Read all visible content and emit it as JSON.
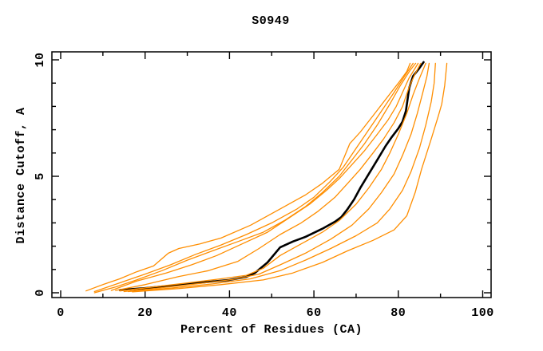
{
  "title": "S0949",
  "colors": {
    "background": "#ffffff",
    "frame": "#000000",
    "orange_series": "#ff8e00",
    "black_series": "#000000"
  },
  "chart_data": {
    "type": "line",
    "title": "S0949",
    "xlabel": "Percent of Residues (CA)",
    "ylabel": "Distance Cutoff, A",
    "xlim": [
      0,
      100
    ],
    "ylim": [
      0,
      10
    ],
    "grid": false,
    "legend": "none",
    "x_major_ticks": {
      "values": [
        0,
        20,
        40,
        60,
        80,
        100
      ],
      "labels": [
        "0",
        "20",
        "40",
        "60",
        "80",
        "100"
      ]
    },
    "x_minor_ticks": [
      10,
      30,
      50,
      70,
      90
    ],
    "y_major_ticks": {
      "values": [
        0,
        5,
        10
      ],
      "labels": [
        "0",
        "5",
        "10"
      ]
    },
    "y_minor_ticks": [
      1,
      2,
      3,
      4,
      6,
      7,
      8,
      9
    ],
    "series": [
      {
        "name": "black-main-curve",
        "color": "#000000",
        "width": 2.6,
        "points": [
          [
            14,
            0.12
          ],
          [
            20,
            0.2
          ],
          [
            27,
            0.32
          ],
          [
            34,
            0.45
          ],
          [
            40,
            0.55
          ],
          [
            44,
            0.68
          ],
          [
            46,
            0.85
          ],
          [
            49,
            1.3
          ],
          [
            52,
            1.95
          ],
          [
            55,
            2.2
          ],
          [
            58,
            2.4
          ],
          [
            62,
            2.75
          ],
          [
            65,
            3.05
          ],
          [
            66.5,
            3.25
          ],
          [
            68,
            3.6
          ],
          [
            69.5,
            4.0
          ],
          [
            71,
            4.5
          ],
          [
            73,
            5.1
          ],
          [
            75,
            5.7
          ],
          [
            77,
            6.3
          ],
          [
            78.5,
            6.7
          ],
          [
            80,
            7.05
          ],
          [
            81,
            7.35
          ],
          [
            81.8,
            7.8
          ],
          [
            82.2,
            8.3
          ],
          [
            82.6,
            8.8
          ],
          [
            83.5,
            9.3
          ],
          [
            84.8,
            9.6
          ],
          [
            86,
            9.9
          ]
        ]
      },
      {
        "name": "orange-curve-1",
        "color": "#ff8e00",
        "width": 1.3,
        "points": [
          [
            6,
            0.08
          ],
          [
            10,
            0.35
          ],
          [
            14,
            0.6
          ],
          [
            18,
            0.9
          ],
          [
            22,
            1.15
          ],
          [
            25.5,
            1.7
          ],
          [
            28,
            1.9
          ],
          [
            33,
            2.1
          ],
          [
            38,
            2.35
          ],
          [
            45,
            2.9
          ],
          [
            52,
            3.6
          ],
          [
            58,
            4.2
          ],
          [
            62,
            4.7
          ],
          [
            66,
            5.3
          ],
          [
            68.5,
            6.4
          ],
          [
            71,
            6.9
          ],
          [
            74,
            7.6
          ],
          [
            77,
            8.3
          ],
          [
            80,
            9.0
          ],
          [
            82,
            9.5
          ],
          [
            82.8,
            9.85
          ]
        ]
      },
      {
        "name": "orange-curve-2",
        "color": "#ff8e00",
        "width": 1.3,
        "points": [
          [
            8,
            0.05
          ],
          [
            12,
            0.3
          ],
          [
            16,
            0.55
          ],
          [
            20,
            0.8
          ],
          [
            26,
            1.2
          ],
          [
            32,
            1.65
          ],
          [
            38,
            2.05
          ],
          [
            44,
            2.5
          ],
          [
            50,
            3.0
          ],
          [
            56,
            3.6
          ],
          [
            60,
            4.1
          ],
          [
            64,
            4.8
          ],
          [
            67,
            5.4
          ],
          [
            70,
            6.2
          ],
          [
            73,
            7.0
          ],
          [
            76,
            7.8
          ],
          [
            79,
            8.6
          ],
          [
            81.5,
            9.3
          ],
          [
            83.5,
            9.85
          ]
        ]
      },
      {
        "name": "orange-curve-3",
        "color": "#ff8e00",
        "width": 1.3,
        "points": [
          [
            8,
            0.0
          ],
          [
            13,
            0.25
          ],
          [
            18,
            0.55
          ],
          [
            24,
            0.95
          ],
          [
            30,
            1.4
          ],
          [
            36,
            1.8
          ],
          [
            42,
            2.2
          ],
          [
            48,
            2.6
          ],
          [
            53,
            3.1
          ],
          [
            58,
            3.7
          ],
          [
            62,
            4.3
          ],
          [
            66,
            5.0
          ],
          [
            69,
            5.7
          ],
          [
            72,
            6.4
          ],
          [
            75,
            7.2
          ],
          [
            78,
            8.1
          ],
          [
            80.5,
            8.9
          ],
          [
            82.8,
            9.55
          ],
          [
            84.1,
            9.85
          ]
        ]
      },
      {
        "name": "orange-curve-4",
        "color": "#ff8e00",
        "width": 1.3,
        "points": [
          [
            12,
            0.1
          ],
          [
            18,
            0.5
          ],
          [
            25,
            0.85
          ],
          [
            31,
            1.2
          ],
          [
            37,
            1.6
          ],
          [
            43,
            2.1
          ],
          [
            49,
            2.6
          ],
          [
            54,
            3.2
          ],
          [
            59,
            3.8
          ],
          [
            63,
            4.4
          ],
          [
            66,
            4.9
          ],
          [
            69,
            5.5
          ],
          [
            72,
            6.1
          ],
          [
            75,
            6.8
          ],
          [
            77.5,
            7.4
          ],
          [
            79.5,
            8.0
          ],
          [
            81,
            8.6
          ],
          [
            82.5,
            9.2
          ],
          [
            84.7,
            9.85
          ]
        ]
      },
      {
        "name": "orange-curve-5",
        "color": "#ff8e00",
        "width": 1.3,
        "points": [
          [
            13,
            0.1
          ],
          [
            20,
            0.35
          ],
          [
            28,
            0.7
          ],
          [
            35,
            0.95
          ],
          [
            42,
            1.35
          ],
          [
            47,
            1.9
          ],
          [
            52,
            2.5
          ],
          [
            57,
            3.0
          ],
          [
            61,
            3.5
          ],
          [
            65,
            4.1
          ],
          [
            68,
            4.7
          ],
          [
            71,
            5.3
          ],
          [
            74,
            6.0
          ],
          [
            76.5,
            6.6
          ],
          [
            79,
            7.3
          ],
          [
            81,
            8.0
          ],
          [
            82.5,
            8.8
          ],
          [
            84,
            9.4
          ],
          [
            85.3,
            9.85
          ]
        ]
      },
      {
        "name": "orange-curve-6",
        "color": "#ff8e00",
        "width": 1.3,
        "points": [
          [
            14,
            0.08
          ],
          [
            22,
            0.25
          ],
          [
            30,
            0.42
          ],
          [
            38,
            0.6
          ],
          [
            44,
            0.75
          ],
          [
            48,
            1.05
          ],
          [
            52,
            1.6
          ],
          [
            57,
            2.1
          ],
          [
            62,
            2.6
          ],
          [
            66,
            3.1
          ],
          [
            70,
            3.8
          ],
          [
            73,
            4.5
          ],
          [
            76,
            5.3
          ],
          [
            78,
            6.0
          ],
          [
            80,
            6.8
          ],
          [
            82,
            7.7
          ],
          [
            83.5,
            8.5
          ],
          [
            85,
            9.2
          ],
          [
            86.5,
            9.85
          ]
        ]
      },
      {
        "name": "orange-curve-7",
        "color": "#ff8e00",
        "width": 1.3,
        "points": [
          [
            15,
            0.05
          ],
          [
            24,
            0.22
          ],
          [
            33,
            0.4
          ],
          [
            41,
            0.58
          ],
          [
            47,
            0.8
          ],
          [
            52,
            1.2
          ],
          [
            58,
            1.7
          ],
          [
            64,
            2.3
          ],
          [
            69,
            2.9
          ],
          [
            73,
            3.6
          ],
          [
            76,
            4.3
          ],
          [
            79,
            5.1
          ],
          [
            81,
            5.9
          ],
          [
            83,
            6.8
          ],
          [
            84.5,
            7.7
          ],
          [
            85.8,
            8.6
          ],
          [
            86.8,
            9.3
          ],
          [
            87.3,
            9.85
          ]
        ]
      },
      {
        "name": "orange-curve-8",
        "color": "#ff8e00",
        "width": 1.3,
        "points": [
          [
            16,
            0.05
          ],
          [
            26,
            0.2
          ],
          [
            36,
            0.38
          ],
          [
            45,
            0.6
          ],
          [
            52,
            0.95
          ],
          [
            58,
            1.4
          ],
          [
            64,
            1.9
          ],
          [
            70,
            2.45
          ],
          [
            75,
            3.0
          ],
          [
            78,
            3.6
          ],
          [
            81,
            4.4
          ],
          [
            83,
            5.2
          ],
          [
            85,
            6.2
          ],
          [
            86.5,
            7.2
          ],
          [
            87.8,
            8.2
          ],
          [
            88.5,
            9.0
          ],
          [
            88.8,
            9.85
          ]
        ]
      },
      {
        "name": "orange-curve-9",
        "color": "#ff8e00",
        "width": 1.3,
        "points": [
          [
            17,
            0.04
          ],
          [
            28,
            0.18
          ],
          [
            38,
            0.35
          ],
          [
            48,
            0.55
          ],
          [
            55,
            0.85
          ],
          [
            62,
            1.3
          ],
          [
            68,
            1.8
          ],
          [
            74,
            2.25
          ],
          [
            79,
            2.7
          ],
          [
            82,
            3.3
          ],
          [
            84,
            4.3
          ],
          [
            85.5,
            5.3
          ],
          [
            87.8,
            6.6
          ],
          [
            89.5,
            7.6
          ],
          [
            90.3,
            8.1
          ],
          [
            91,
            8.9
          ],
          [
            91.5,
            9.85
          ]
        ]
      }
    ]
  }
}
